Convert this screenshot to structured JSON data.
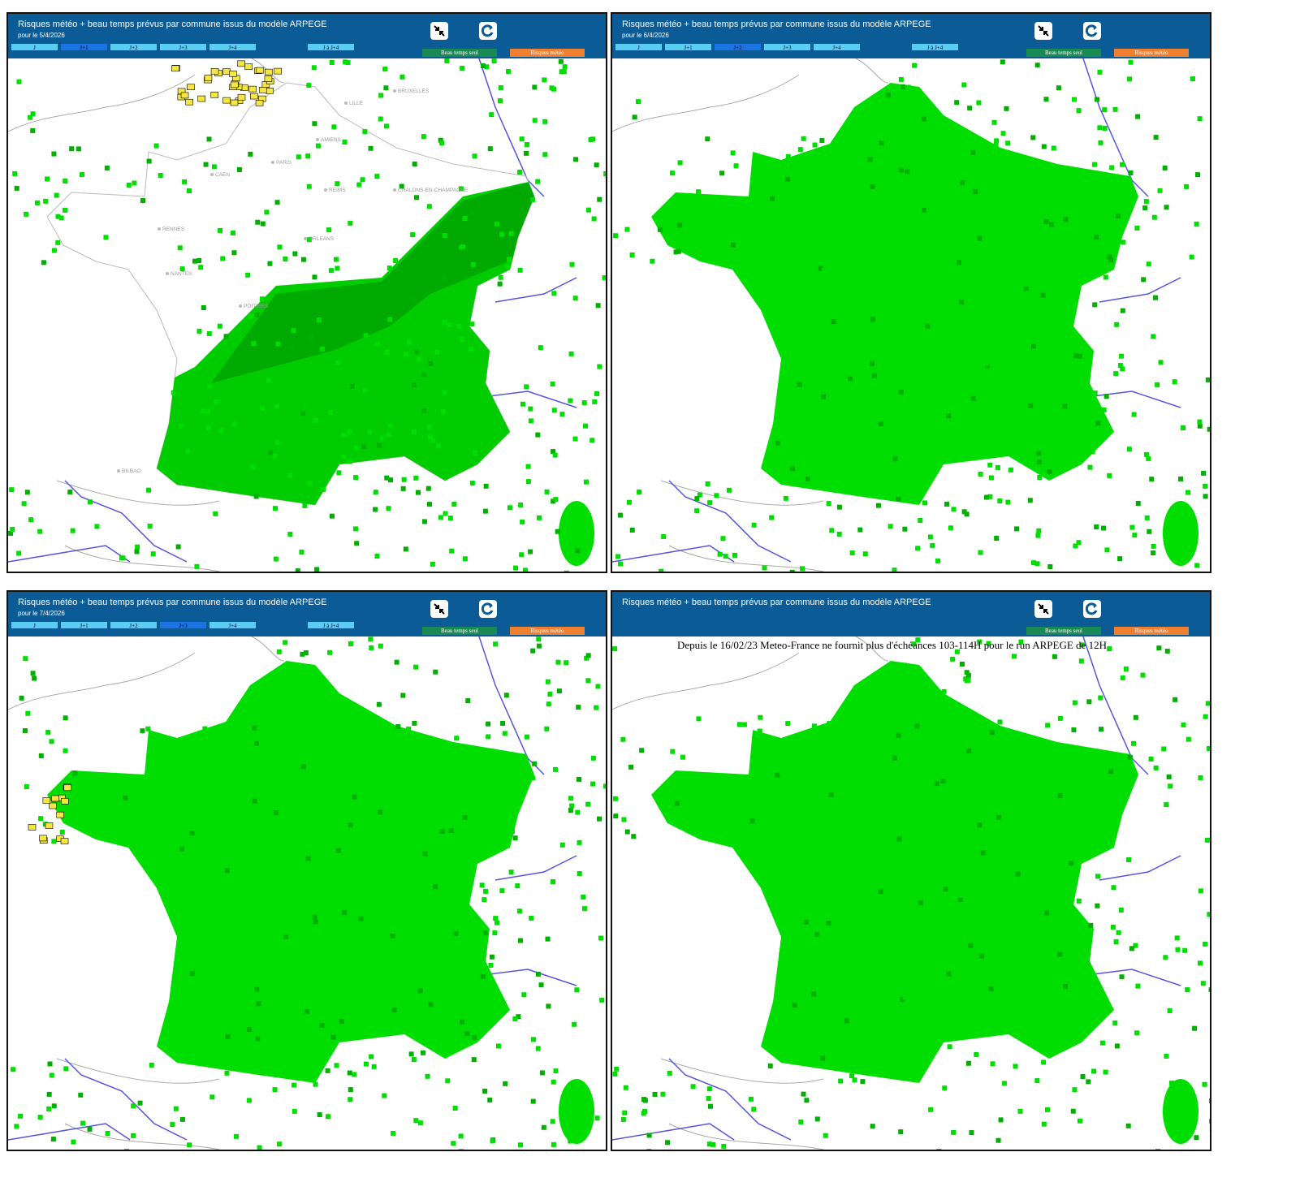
{
  "tabs": [
    "J",
    "J+1",
    "J+2",
    "J+3",
    "J+4"
  ],
  "range_tab": "J à J+4",
  "buttons": {
    "fair": "Beau temps seul",
    "risk": "Risques météo"
  },
  "map_labels": [
    "BRUXELLES",
    "LILLE",
    "AMIENS",
    "CAEN",
    "PARIS",
    "REIMS",
    "CHALONS-EN-CHAMPAGNE",
    "RENNES",
    "NANTES",
    "ORLEANS",
    "POITIERS",
    "BILBAO"
  ],
  "panels": [
    {
      "title": "Risques météo + beau temps prévus par commune issus du modèle ARPEGE",
      "date": "pour le 5/4/2026",
      "active_tab": 1
    },
    {
      "title": "Risques météo + beau temps prévus par commune issus du modèle ARPEGE",
      "date": "pour le 6/4/2026",
      "active_tab": 2
    },
    {
      "title": "Risques météo + beau temps prévus par commune issus du modèle ARPEGE",
      "date": "pour le 7/4/2026",
      "active_tab": 3
    },
    {
      "title": "Risques météo + beau temps prévus par commune issus du modèle ARPEGE",
      "note": "Depuis le 16/02/23 Meteo-France ne fournit plus d'échéances 103-114H pour le run ARPEGE de 12H"
    }
  ]
}
